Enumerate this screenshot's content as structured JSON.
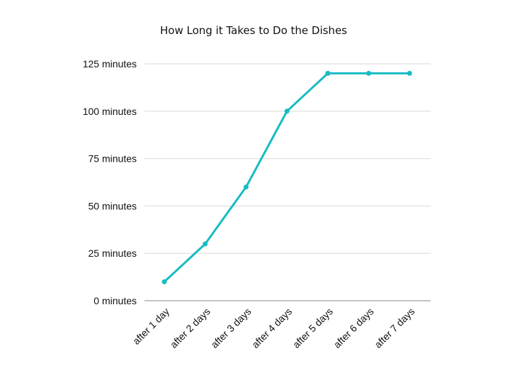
{
  "chart_data": {
    "type": "line",
    "title": "How Long it Takes to Do the Dishes",
    "xlabel": "",
    "ylabel": "",
    "categories": [
      "after 1 day",
      "after 2 days",
      "after 3 days",
      "after 4 days",
      "after 5 days",
      "after 6 days",
      "after 7 days"
    ],
    "series": [
      {
        "values": [
          10,
          30,
          60,
          100,
          120,
          120,
          120
        ]
      }
    ],
    "ylim": [
      0,
      125
    ],
    "y_ticks": [
      0,
      25,
      50,
      75,
      100,
      125
    ],
    "y_tick_labels": [
      "0 minutes",
      "25 minutes",
      "50 minutes",
      "75 minutes",
      "100 minutes",
      "125 minutes"
    ],
    "grid": true,
    "colors": {
      "line": "#17bcc2",
      "grid": "#d9d9d9",
      "axis": "#888888",
      "text": "#111111"
    }
  }
}
